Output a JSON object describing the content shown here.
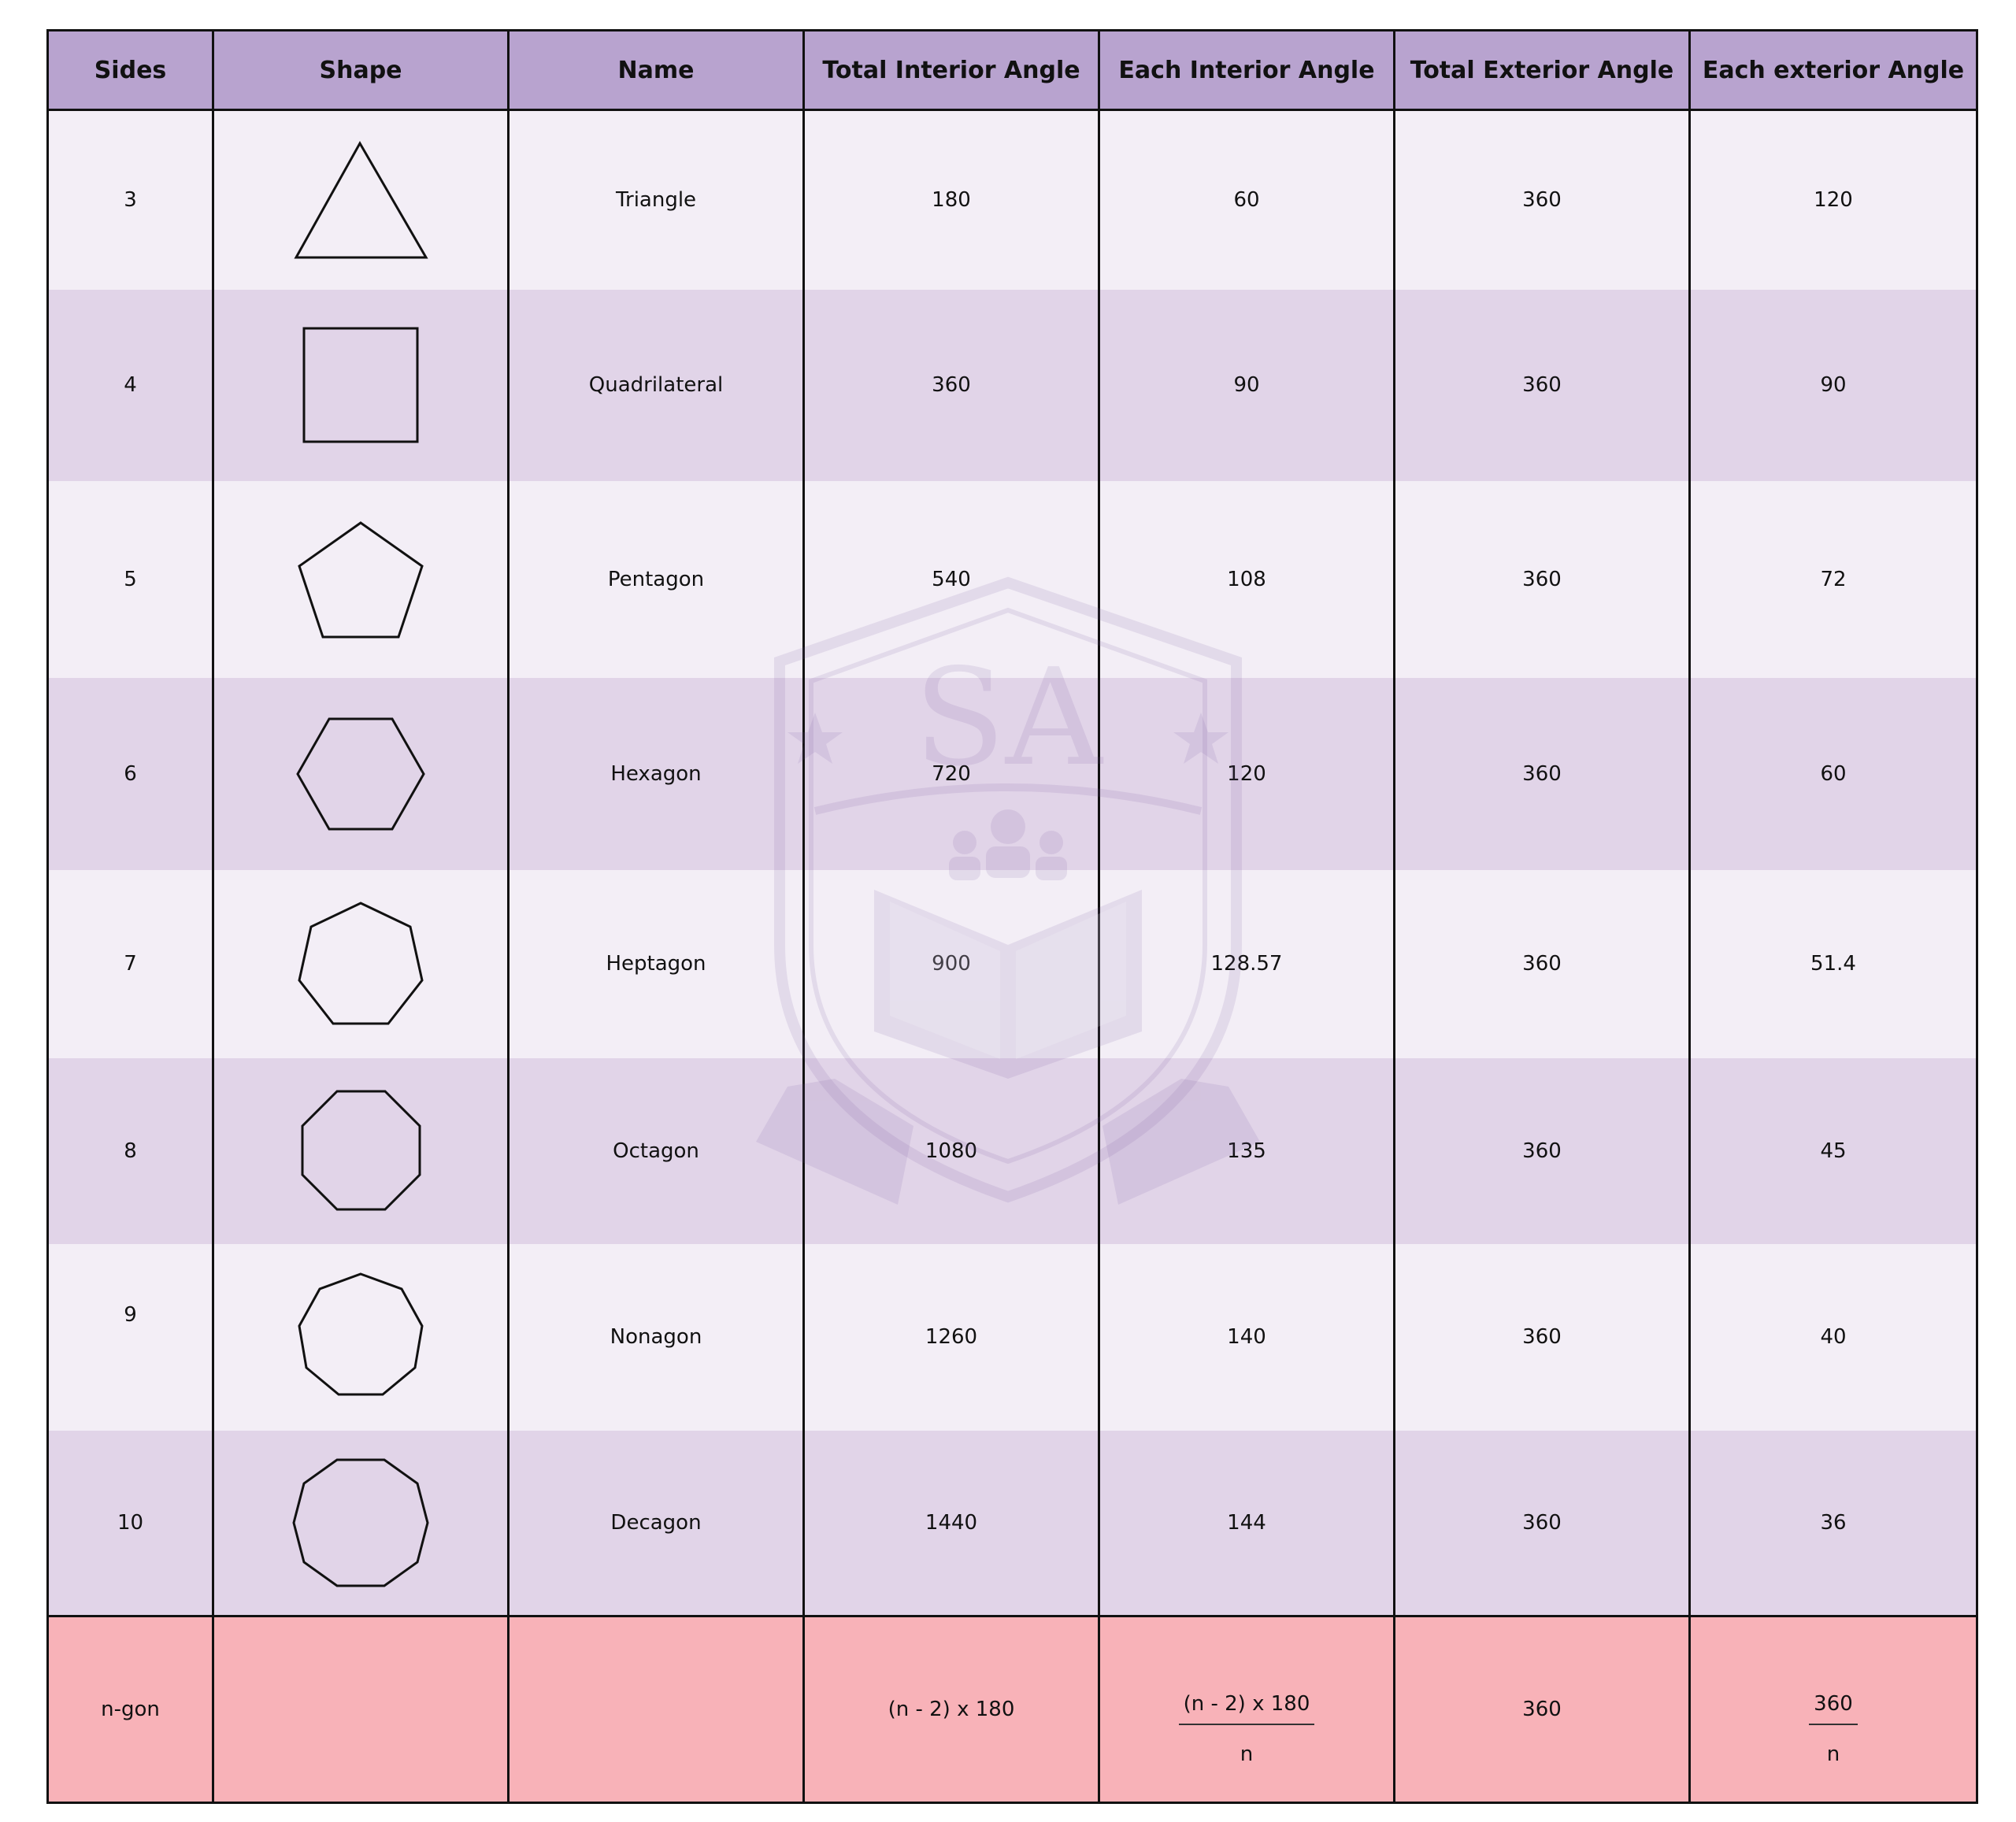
{
  "table": {
    "headers": [
      "Sides",
      "Shape",
      "Name",
      "Total Interior Angle",
      "Each Interior Angle",
      "Total Exterior Angle",
      "Each exterior Angle"
    ],
    "rows": [
      {
        "sides": "3",
        "name": "Triangle",
        "total_interior": "180",
        "each_interior": "60",
        "total_exterior": "360",
        "each_exterior": "120"
      },
      {
        "sides": "4",
        "name": "Quadrilateral",
        "total_interior": "360",
        "each_interior": "90",
        "total_exterior": "360",
        "each_exterior": "90"
      },
      {
        "sides": "5",
        "name": "Pentagon",
        "total_interior": "540",
        "each_interior": "108",
        "total_exterior": "360",
        "each_exterior": "72"
      },
      {
        "sides": "6",
        "name": "Hexagon",
        "total_interior": "720",
        "each_interior": "120",
        "total_exterior": "360",
        "each_exterior": "60"
      },
      {
        "sides": "7",
        "name": "Heptagon",
        "total_interior": "900",
        "each_interior": "128.57",
        "total_exterior": "360",
        "each_exterior": "51.4"
      },
      {
        "sides": "8",
        "name": "Octagon",
        "total_interior": "1080",
        "each_interior": "135",
        "total_exterior": "360",
        "each_exterior": "45"
      },
      {
        "sides": "9",
        "name": "Nonagon",
        "total_interior": "1260",
        "each_interior": "140",
        "total_exterior": "360",
        "each_exterior": "40"
      },
      {
        "sides": "10",
        "name": "Decagon",
        "total_interior": "1440",
        "each_interior": "144",
        "total_exterior": "360",
        "each_exterior": "36"
      }
    ],
    "footer": {
      "sides": "n-gon",
      "total_interior": "(n - 2) x 180",
      "each_interior_num": "(n - 2) x 180",
      "each_interior_den": "n",
      "total_exterior": "360",
      "each_exterior_num": "360",
      "each_exterior_den": "n"
    }
  },
  "watermark": {
    "letters": "SA"
  },
  "colors": {
    "header_bg": "#b8a3cf",
    "row_light": "#f3eef6",
    "row_dark": "#e1d4e8",
    "footer_bg": "#f8b2b8"
  }
}
